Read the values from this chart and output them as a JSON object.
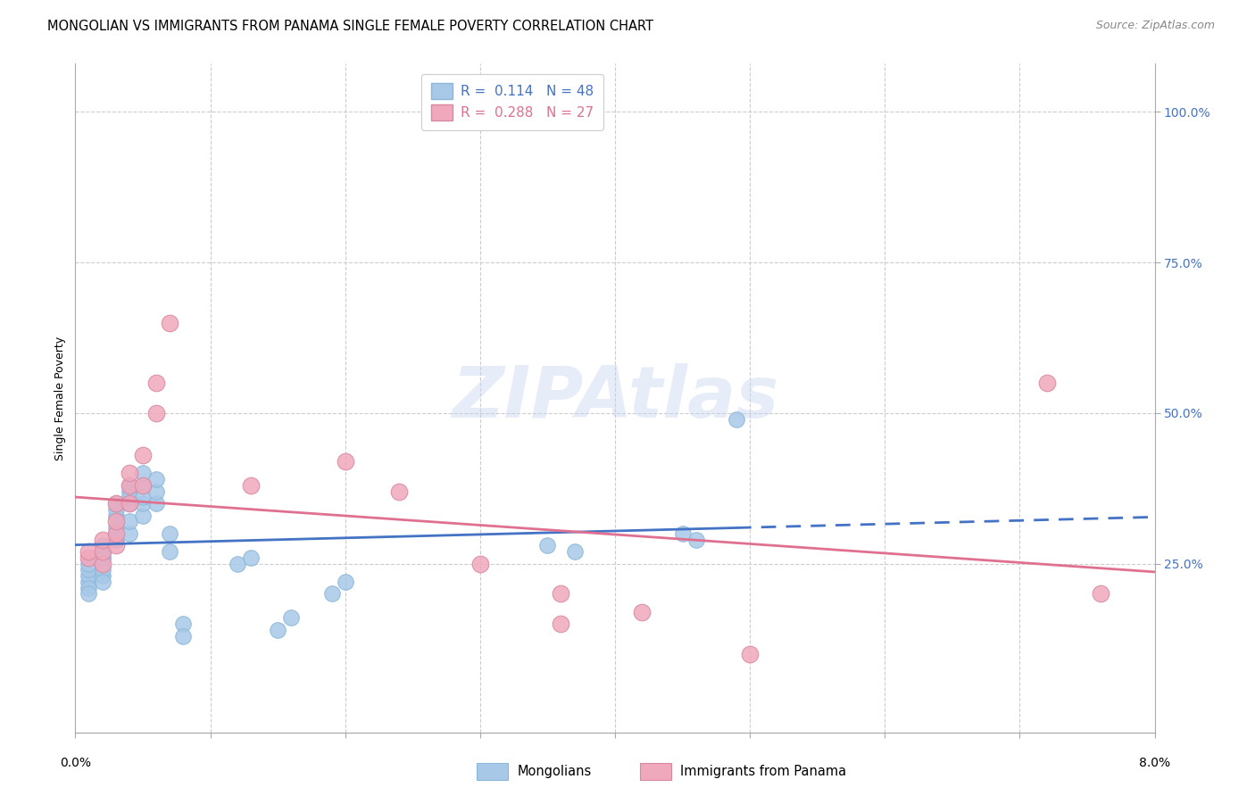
{
  "title": "MONGOLIAN VS IMMIGRANTS FROM PANAMA SINGLE FEMALE POVERTY CORRELATION CHART",
  "source": "Source: ZipAtlas.com",
  "ylabel": "Single Female Poverty",
  "ylabel_right_ticks": [
    "100.0%",
    "75.0%",
    "50.0%",
    "25.0%"
  ],
  "ylabel_right_vals": [
    1.0,
    0.75,
    0.5,
    0.25
  ],
  "xlim": [
    0.0,
    0.08
  ],
  "ylim": [
    0.0,
    1.08
  ],
  "r_mongolian": 0.114,
  "n_mongolian": 48,
  "r_panama": 0.288,
  "n_panama": 27,
  "watermark": "ZIPAtlas",
  "blue_color": "#A8C8E8",
  "pink_color": "#F0A8BC",
  "blue_line_color": "#4472C4",
  "pink_line_color": "#E07090",
  "mongolian_x": [
    0.001,
    0.001,
    0.001,
    0.001,
    0.001,
    0.001,
    0.002,
    0.002,
    0.002,
    0.002,
    0.002,
    0.002,
    0.002,
    0.003,
    0.003,
    0.003,
    0.003,
    0.003,
    0.003,
    0.004,
    0.004,
    0.004,
    0.004,
    0.004,
    0.004,
    0.005,
    0.005,
    0.005,
    0.005,
    0.005,
    0.006,
    0.006,
    0.006,
    0.007,
    0.007,
    0.008,
    0.008,
    0.012,
    0.013,
    0.015,
    0.016,
    0.019,
    0.02,
    0.035,
    0.037,
    0.045,
    0.046,
    0.049
  ],
  "mongolian_y": [
    0.22,
    0.23,
    0.24,
    0.25,
    0.21,
    0.2,
    0.26,
    0.27,
    0.23,
    0.24,
    0.22,
    0.26,
    0.28,
    0.3,
    0.31,
    0.29,
    0.33,
    0.34,
    0.35,
    0.3,
    0.32,
    0.35,
    0.37,
    0.38,
    0.36,
    0.33,
    0.35,
    0.38,
    0.4,
    0.36,
    0.35,
    0.37,
    0.39,
    0.27,
    0.3,
    0.15,
    0.13,
    0.25,
    0.26,
    0.14,
    0.16,
    0.2,
    0.22,
    0.28,
    0.27,
    0.3,
    0.29,
    0.49
  ],
  "panama_x": [
    0.001,
    0.001,
    0.002,
    0.002,
    0.002,
    0.003,
    0.003,
    0.003,
    0.003,
    0.004,
    0.004,
    0.004,
    0.005,
    0.005,
    0.006,
    0.006,
    0.007,
    0.013,
    0.02,
    0.024,
    0.03,
    0.036,
    0.036,
    0.042,
    0.05,
    0.072,
    0.076
  ],
  "panama_y": [
    0.26,
    0.27,
    0.25,
    0.27,
    0.29,
    0.28,
    0.3,
    0.32,
    0.35,
    0.35,
    0.38,
    0.4,
    0.38,
    0.43,
    0.5,
    0.55,
    0.65,
    0.38,
    0.42,
    0.37,
    0.25,
    0.15,
    0.2,
    0.17,
    0.1,
    0.55,
    0.2
  ],
  "title_fontsize": 10.5,
  "source_fontsize": 9,
  "axis_fontsize": 9,
  "tick_fontsize": 9,
  "legend_fontsize": 11
}
